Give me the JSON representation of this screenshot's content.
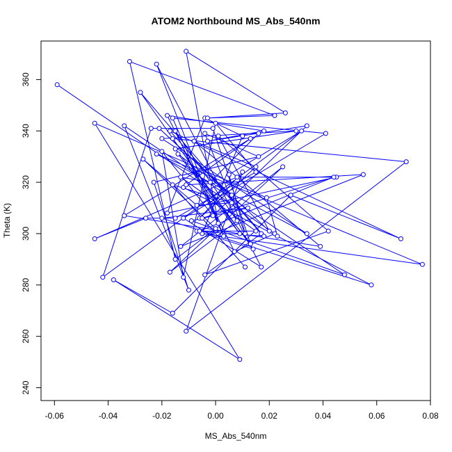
{
  "chart_data": {
    "type": "line",
    "title": "ATOM2 Northbound MS_Abs_540nm",
    "xlabel": "MS_Abs_540nm",
    "ylabel": "Theta (K)",
    "xlim": [
      -0.065,
      0.08
    ],
    "ylim": [
      235,
      375
    ],
    "x_ticks": [
      -0.06,
      -0.04,
      -0.02,
      0.0,
      0.02,
      0.04,
      0.06,
      0.08
    ],
    "x_tick_labels": [
      "-0.06",
      "-0.04",
      "-0.02",
      "0.00",
      "0.02",
      "0.04",
      "0.06",
      "0.08"
    ],
    "y_ticks": [
      240,
      260,
      280,
      300,
      320,
      340,
      360
    ],
    "y_tick_labels": [
      "240",
      "260",
      "280",
      "300",
      "320",
      "340",
      "360"
    ],
    "grid": false,
    "series": [
      {
        "color": "#0000ff",
        "marker": "open-circle",
        "x": [
          -0.059,
          0.022,
          0.007,
          -0.018,
          0.018,
          -0.003,
          0.034,
          -0.001,
          -0.02,
          -0.012,
          0.0,
          0.015,
          -0.015,
          -0.026,
          -0.045,
          0.008,
          0.045,
          -0.018,
          -0.004,
          0.01,
          -0.005,
          0.077,
          -0.022,
          0.034,
          -0.02,
          0.03,
          -0.015,
          0.013,
          -0.001,
          -0.024,
          -0.042,
          0.032,
          0.005,
          0.011,
          -0.004,
          0.016,
          -0.023,
          -0.01,
          -0.034,
          0.048,
          -0.009,
          0.012,
          -0.02,
          0.058,
          -0.012,
          0.023,
          0.019,
          -0.045,
          0.009,
          -0.038,
          -0.016,
          0.028,
          0.069,
          -0.017,
          0.017,
          -0.004,
          0.042,
          0.001,
          0.02,
          -0.021,
          0.006,
          -0.014,
          0.009,
          -0.028,
          0.018,
          -0.007,
          0.014,
          -0.016,
          0.071,
          -0.011,
          0.01,
          -0.006,
          0.015,
          -0.008,
          0.039,
          -0.034,
          0.013,
          -0.011,
          0.055,
          -0.013,
          0.025,
          -0.017,
          0.008,
          -0.015,
          0.003,
          -0.022,
          0.017,
          -0.012,
          0.041,
          -0.016,
          0.001,
          -0.011,
          0.026,
          -0.003,
          0.022,
          -0.032,
          -0.015,
          0.0,
          -0.027,
          -0.007,
          0.006,
          -0.016,
          0.011,
          -0.005,
          0.044,
          -0.006,
          0.015,
          -0.013,
          -0.002,
          0.016
        ],
        "y": [
          358,
          300,
          293,
          346,
          340,
          336,
          342,
          307,
          332,
          283,
          343,
          324,
          306,
          306,
          298,
          322,
          322,
          308,
          345,
          338,
          300,
          288,
          331,
          300,
          337,
          340,
          333,
          296,
          341,
          341,
          283,
          340,
          323,
          300,
          339,
          330,
          320,
          278,
          342,
          284,
          305,
          310,
          306,
          280,
          318,
          299,
          314,
          343,
          251,
          282,
          269,
          315,
          298,
          340,
          300,
          284,
          301,
          338,
          301,
          341,
          315,
          331,
          300,
          355,
          299,
          301,
          294,
          337,
          328,
          262,
          324,
          306,
          326,
          336,
          295,
          307,
          337,
          319,
          323,
          295,
          326,
          285,
          305,
          340,
          299,
          366,
          287,
          306,
          339,
          345,
          304,
          371,
          347,
          345,
          346,
          367,
          290,
          302,
          329,
          311,
          312,
          319,
          287,
          306,
          322,
          301,
          301,
          322,
          320,
          339
        ]
      }
    ]
  }
}
